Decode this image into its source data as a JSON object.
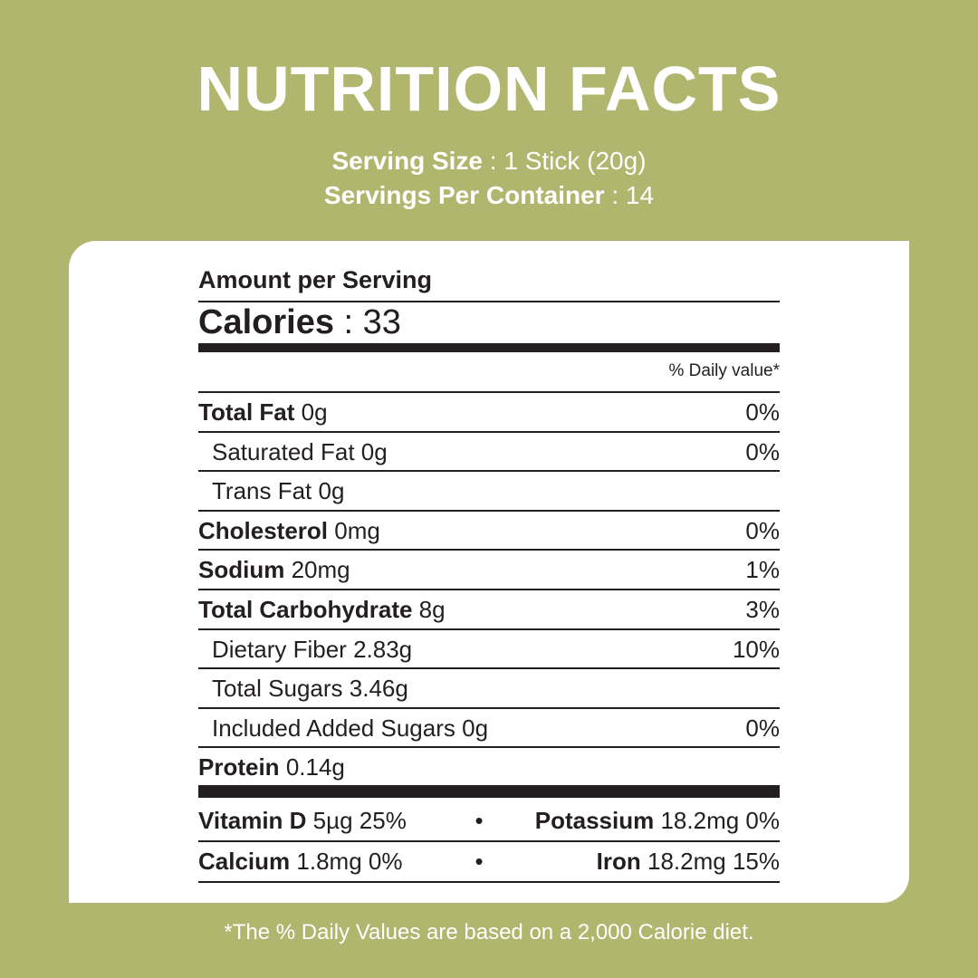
{
  "header": {
    "title": "NUTRITION FACTS",
    "serving_size": {
      "label": "Serving Size",
      "value": ": 1 Stick (20g)"
    },
    "servings_per_container": {
      "label": "Servings Per Container",
      "value": ": 14"
    }
  },
  "label": {
    "amount_per_serving": "Amount per Serving",
    "calories": {
      "label": "Calories",
      "value": ": 33"
    },
    "daily_value_heading": "% Daily value*",
    "nutrients": [
      {
        "name": "Total Fat",
        "amount": "0g",
        "daily_value": "0%",
        "indent": false
      },
      {
        "name": "Saturated Fat",
        "amount": "0g",
        "daily_value": "0%",
        "indent": true
      },
      {
        "name": "Trans Fat",
        "amount": "0g",
        "indent": true
      },
      {
        "name": "Cholesterol",
        "amount": "0mg",
        "daily_value": "0%",
        "indent": false
      },
      {
        "name": "Sodium",
        "amount": "20mg",
        "daily_value": "1%",
        "indent": false
      },
      {
        "name": "Total Carbohydrate",
        "amount": "8g",
        "daily_value": "3%",
        "indent": false
      },
      {
        "name": "Dietary Fiber",
        "amount": "2.83g",
        "daily_value": "10%",
        "indent": true
      },
      {
        "name": "Total Sugars",
        "amount": "3.46g",
        "indent": true
      },
      {
        "name": "Included Added Sugars",
        "amount": "0g",
        "daily_value": "0%",
        "indent": true
      },
      {
        "name": "Protein",
        "amount": "0.14g",
        "indent": false
      }
    ],
    "vitamins": [
      {
        "left": {
          "name": "Vitamin D",
          "amount": "5µg 25%"
        },
        "separator": "•",
        "right": {
          "name": "Potassium",
          "amount": "18.2mg 0%"
        }
      },
      {
        "left": {
          "name": "Calcium",
          "amount": "1.8mg 0%"
        },
        "separator": "•",
        "right": {
          "name": "Iron",
          "amount": "18.2mg 15%"
        }
      }
    ]
  },
  "footnote": "*The % Daily Values are based on a 2,000 Calorie diet."
}
